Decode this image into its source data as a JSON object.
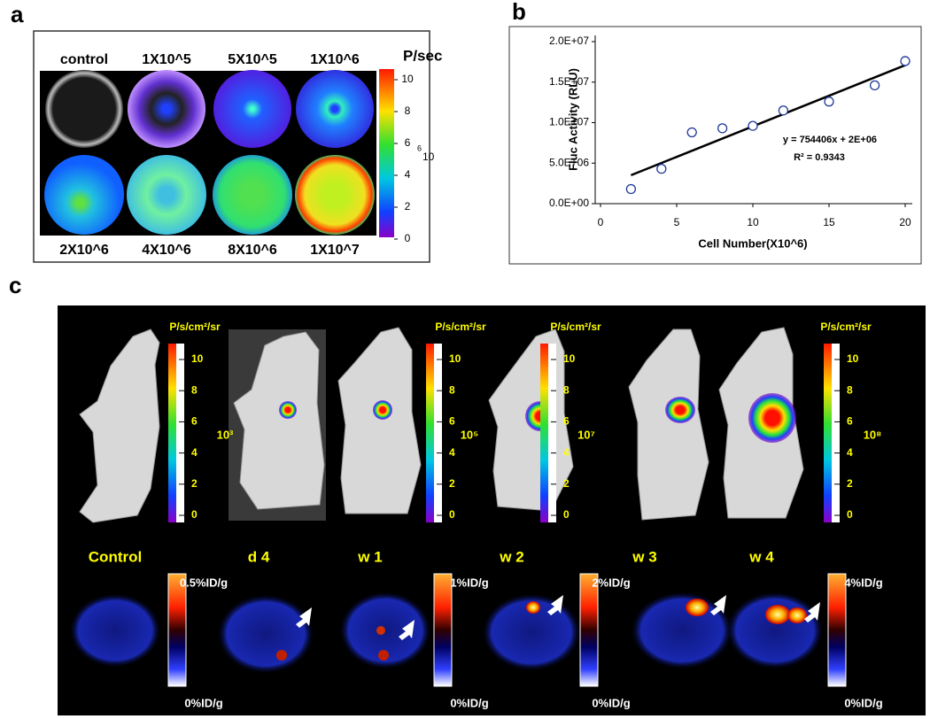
{
  "panels": [
    "a",
    "b",
    "c"
  ],
  "panel_a": {
    "unit": "P/sec",
    "top_labels": [
      "control",
      "1X10^5",
      "5X10^5",
      "1X10^6"
    ],
    "bottom_labels": [
      "2X10^6",
      "4X10^6",
      "8X10^6",
      "1X10^7"
    ],
    "colorbar_ticks": [
      10,
      8,
      6,
      4,
      2,
      0
    ],
    "exponent": "6",
    "base": "10"
  },
  "chart_data": {
    "type": "scatter",
    "x_label": "Cell Number(X10^6)",
    "y_label": "Fluc Activity (RLU)",
    "x": [
      2,
      4,
      6,
      8,
      10,
      12,
      15,
      18,
      20
    ],
    "values": [
      1800000,
      4300000,
      8800000,
      9300000,
      9600000,
      11500000,
      12600000,
      14600000,
      17600000
    ],
    "color": "#1f3a9a",
    "xlim": [
      0,
      20
    ],
    "xticks": [
      0,
      5,
      10,
      15,
      20
    ],
    "ylim": [
      0,
      20000000
    ],
    "yticks": [
      {
        "value": 0,
        "label": "0.0E+00"
      },
      {
        "value": 5000000,
        "label": "5.0E+06"
      },
      {
        "value": 10000000,
        "label": "1.0E+07"
      },
      {
        "value": 15000000,
        "label": "1.5E+07"
      },
      {
        "value": 20000000,
        "label": "2.0E+07"
      }
    ],
    "trendline": {
      "slope": 754406,
      "intercept": 2000000
    },
    "trendline_label": "y = 754406x + 2E+06",
    "r2_label": "R² = 0.9343"
  },
  "panel_c": {
    "colorbars": [
      {
        "unit": "P/s/cm²/sr",
        "ticks": [
          10,
          8,
          6,
          4,
          2,
          0
        ],
        "scale": "10³"
      },
      {
        "unit": "P/s/cm²/sr",
        "ticks": [
          10,
          8,
          6,
          4,
          2,
          0
        ],
        "scale": "10⁵"
      },
      {
        "unit": "P/s/cm²/sr",
        "ticks": [
          10,
          8,
          6,
          4,
          2,
          0
        ],
        "scale": "10⁷"
      },
      {
        "unit": "P/s/cm²/sr",
        "ticks": [
          10,
          8,
          6,
          4,
          2,
          0
        ],
        "scale": "10⁸"
      }
    ],
    "timepoints": [
      "Control",
      "d 4",
      "w 1",
      "w 2",
      "w 3",
      "w 4"
    ],
    "pet_scales": [
      {
        "max": "0.5%ID/g",
        "min": "0%ID/g"
      },
      {
        "max": "1%ID/g",
        "min": "0%ID/g"
      },
      {
        "max": "2%ID/g",
        "min": "0%ID/g"
      },
      {
        "max": "4%ID/g",
        "min": "0%ID/g"
      }
    ]
  }
}
